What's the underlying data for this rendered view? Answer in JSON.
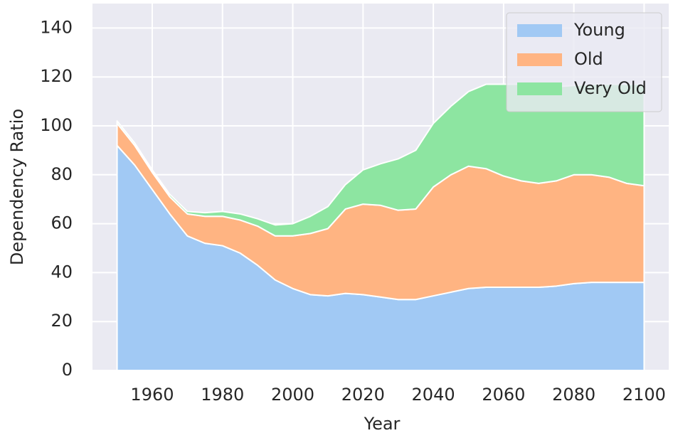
{
  "chart_data": {
    "type": "stacked_area",
    "xlabel": "Year",
    "ylabel": "Dependency Ratio",
    "x": [
      1950,
      1955,
      1960,
      1965,
      1970,
      1975,
      1980,
      1985,
      1990,
      1995,
      2000,
      2005,
      2010,
      2015,
      2020,
      2025,
      2030,
      2035,
      2040,
      2045,
      2050,
      2055,
      2060,
      2065,
      2070,
      2075,
      2080,
      2085,
      2090,
      2095,
      2100
    ],
    "series": [
      {
        "name": "Young",
        "color": "#a1c9f4",
        "values": [
          92,
          84,
          74,
          64,
          55,
          52,
          51,
          48,
          43,
          37,
          33.5,
          31,
          30.5,
          31.5,
          31,
          30,
          29,
          29,
          30.5,
          32,
          33.5,
          34,
          34,
          34,
          34,
          34.5,
          35.5,
          36,
          36,
          36,
          36
        ]
      },
      {
        "name": "Old",
        "color": "#ffb482",
        "values": [
          9,
          8,
          7,
          7,
          9,
          11,
          12,
          13.5,
          16,
          18,
          21.5,
          25,
          27.5,
          34.5,
          37,
          37.5,
          36.5,
          37,
          44.5,
          48,
          50,
          48.5,
          45.5,
          43.5,
          42.5,
          43,
          44.5,
          44,
          43,
          40.5,
          39.5
        ]
      },
      {
        "name": "Very Old",
        "color": "#8de5a1",
        "values": [
          1,
          1,
          1,
          1,
          1,
          1.5,
          2,
          2.5,
          3,
          4.5,
          5,
          7,
          9,
          10,
          14,
          17,
          21,
          24,
          26,
          28,
          30.5,
          34.5,
          37.5,
          39.5,
          39.5,
          38.5,
          36.5,
          37,
          38,
          40.5,
          41.5
        ]
      }
    ],
    "xlim": [
      1943,
      2107
    ],
    "ylim": [
      0,
      150
    ],
    "xticks": [
      1960,
      1980,
      2000,
      2020,
      2040,
      2060,
      2080,
      2100
    ],
    "yticks": [
      0,
      20,
      40,
      60,
      80,
      100,
      120,
      140
    ],
    "grid": true,
    "legend": "upper right"
  }
}
